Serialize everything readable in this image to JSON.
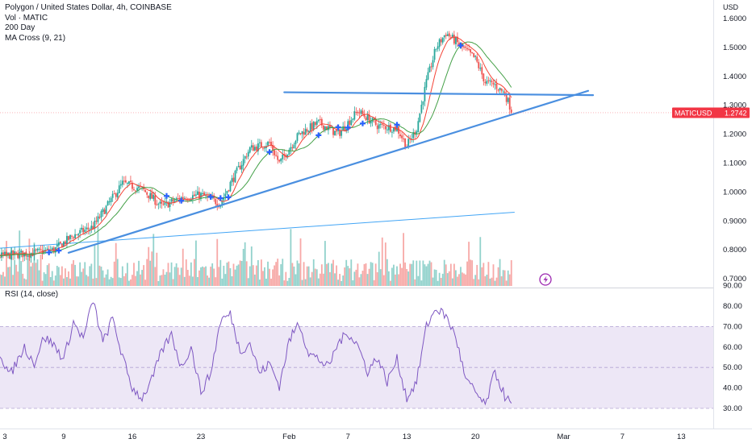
{
  "legend": {
    "title": "Polygon / United States Dollar, 4h, COINBASE",
    "vol": "Vol · MATIC",
    "ma200": "200 Day",
    "cross": "MA Cross (9, 21)"
  },
  "currency": "USD",
  "colors": {
    "up": "#26a69a",
    "down": "#ef5350",
    "ma_fast": "#f44336",
    "ma_slow": "#43a047",
    "ma200": "#42a5f5",
    "trendline": "#4a8fe0",
    "rsi": "#7e57c2",
    "rsi_band": "#ede7f6",
    "price_badge": "#f23645"
  },
  "price_badge": {
    "symbol": "MATICUSD",
    "price": "1.2742"
  },
  "chart_data": [
    {
      "type": "candlestick",
      "title": "Polygon / United States Dollar, 4h, COINBASE",
      "x_tick_labels": [
        "3",
        "9",
        "16",
        "23",
        "Feb",
        "7",
        "13",
        "20",
        "Mar",
        "7",
        "13"
      ],
      "x_tick_days": [
        3,
        9,
        16,
        23,
        32,
        38,
        44,
        51,
        60,
        66,
        72
      ],
      "y_tick_labels": [
        "1.6000",
        "1.5000",
        "1.4000",
        "1.3000",
        "1.2000",
        "1.1000",
        "1.0000",
        "0.9000",
        "0.8000",
        "0.7000"
      ],
      "ylim": [
        0.69,
        1.64
      ],
      "last_price": 1.2742,
      "price_anchors_day_close": [
        [
          0,
          0.77
        ],
        [
          3,
          0.78
        ],
        [
          6,
          0.79
        ],
        [
          8,
          0.8
        ],
        [
          10,
          0.85
        ],
        [
          12,
          0.88
        ],
        [
          14,
          0.98
        ],
        [
          15,
          1.03
        ],
        [
          17,
          1.01
        ],
        [
          19,
          0.95
        ],
        [
          21,
          0.98
        ],
        [
          23,
          0.99
        ],
        [
          25,
          0.96
        ],
        [
          26,
          1.03
        ],
        [
          28,
          1.15
        ],
        [
          30,
          1.17
        ],
        [
          31,
          1.1
        ],
        [
          33,
          1.2
        ],
        [
          35,
          1.24
        ],
        [
          37,
          1.2
        ],
        [
          39,
          1.28
        ],
        [
          41,
          1.23
        ],
        [
          43,
          1.22
        ],
        [
          44,
          1.16
        ],
        [
          45,
          1.22
        ],
        [
          46,
          1.38
        ],
        [
          47,
          1.5
        ],
        [
          48,
          1.55
        ],
        [
          49,
          1.52
        ],
        [
          51,
          1.46
        ],
        [
          52,
          1.38
        ],
        [
          53,
          1.37
        ],
        [
          54,
          1.34
        ],
        [
          54.8,
          1.2742
        ]
      ],
      "ma_cross_markers_day": [
        7.5,
        8.5,
        19.5,
        21,
        24,
        25,
        25.8,
        30,
        35,
        37,
        38,
        39.5,
        43,
        49.5
      ],
      "moving_averages": [
        "MA Cross (9, 21)",
        "200 Day"
      ],
      "ma200_endpoints": [
        [
          0,
          0.8
        ],
        [
          55,
          0.93
        ]
      ],
      "trendlines": [
        {
          "kind": "support",
          "from": [
            9.5,
            0.79
          ],
          "to": [
            62.5,
            1.35
          ]
        },
        {
          "kind": "resistance",
          "from": [
            31.5,
            1.345
          ],
          "to": [
            63,
            1.335
          ]
        }
      ],
      "volume": "Vol · MATIC"
    },
    {
      "type": "line",
      "title": "RSI (14, close)",
      "y_tick_labels": [
        "90.00",
        "80.00",
        "70.00",
        "60.00",
        "50.00",
        "40.00",
        "30.00"
      ],
      "ylim": [
        25,
        90
      ],
      "band": [
        30,
        70
      ],
      "rsi_anchors_day": [
        [
          0,
          58
        ],
        [
          1.5,
          49
        ],
        [
          2.5,
          57
        ],
        [
          3.5,
          46
        ],
        [
          5,
          60
        ],
        [
          6,
          52
        ],
        [
          7,
          65
        ],
        [
          8,
          61
        ],
        [
          9,
          54
        ],
        [
          10,
          72
        ],
        [
          11,
          64
        ],
        [
          12,
          83
        ],
        [
          13,
          62
        ],
        [
          14,
          74
        ],
        [
          15,
          55
        ],
        [
          16,
          40
        ],
        [
          17,
          35
        ],
        [
          18,
          44
        ],
        [
          19,
          58
        ],
        [
          20,
          66
        ],
        [
          21,
          50
        ],
        [
          22,
          60
        ],
        [
          23,
          38
        ],
        [
          24,
          47
        ],
        [
          25,
          73
        ],
        [
          26,
          76
        ],
        [
          27,
          58
        ],
        [
          28,
          62
        ],
        [
          29,
          47
        ],
        [
          30,
          52
        ],
        [
          31,
          41
        ],
        [
          32,
          63
        ],
        [
          33,
          72
        ],
        [
          34,
          57
        ],
        [
          35,
          54
        ],
        [
          36,
          50
        ],
        [
          37,
          62
        ],
        [
          38,
          67
        ],
        [
          39,
          61
        ],
        [
          40,
          48
        ],
        [
          41,
          55
        ],
        [
          42,
          43
        ],
        [
          43,
          54
        ],
        [
          44,
          35
        ],
        [
          45,
          43
        ],
        [
          46,
          70
        ],
        [
          47,
          79
        ],
        [
          48,
          75
        ],
        [
          49,
          65
        ],
        [
          50,
          44
        ],
        [
          51,
          38
        ],
        [
          52,
          31
        ],
        [
          53,
          48
        ],
        [
          54,
          36
        ],
        [
          54.5,
          33
        ],
        [
          55,
          27
        ]
      ]
    }
  ]
}
